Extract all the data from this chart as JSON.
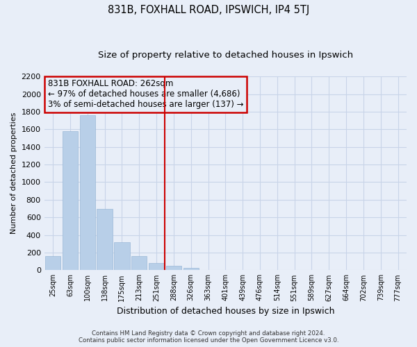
{
  "title": "831B, FOXHALL ROAD, IPSWICH, IP4 5TJ",
  "subtitle": "Size of property relative to detached houses in Ipswich",
  "xlabel": "Distribution of detached houses by size in Ipswich",
  "ylabel": "Number of detached properties",
  "bar_labels": [
    "25sqm",
    "63sqm",
    "100sqm",
    "138sqm",
    "175sqm",
    "213sqm",
    "251sqm",
    "288sqm",
    "326sqm",
    "363sqm",
    "401sqm",
    "439sqm",
    "476sqm",
    "514sqm",
    "551sqm",
    "589sqm",
    "627sqm",
    "664sqm",
    "702sqm",
    "739sqm",
    "777sqm"
  ],
  "bar_values": [
    160,
    1580,
    1760,
    700,
    315,
    160,
    85,
    50,
    30,
    0,
    0,
    0,
    0,
    0,
    0,
    0,
    0,
    0,
    0,
    0,
    0
  ],
  "bar_color": "#b8cfe8",
  "bar_edge_color": "#9ab8d8",
  "ylim": [
    0,
    2200
  ],
  "yticks": [
    0,
    200,
    400,
    600,
    800,
    1000,
    1200,
    1400,
    1600,
    1800,
    2000,
    2200
  ],
  "vline_x": 6.5,
  "vline_color": "#cc0000",
  "annotation_title": "831B FOXHALL ROAD: 262sqm",
  "annotation_line1": "← 97% of detached houses are smaller (4,686)",
  "annotation_line2": "3% of semi-detached houses are larger (137) →",
  "footer_line1": "Contains HM Land Registry data © Crown copyright and database right 2024.",
  "footer_line2": "Contains public sector information licensed under the Open Government Licence v3.0.",
  "bg_color": "#e8eef8",
  "grid_color": "#c8d4e8",
  "title_fontsize": 10.5,
  "subtitle_fontsize": 9.5
}
